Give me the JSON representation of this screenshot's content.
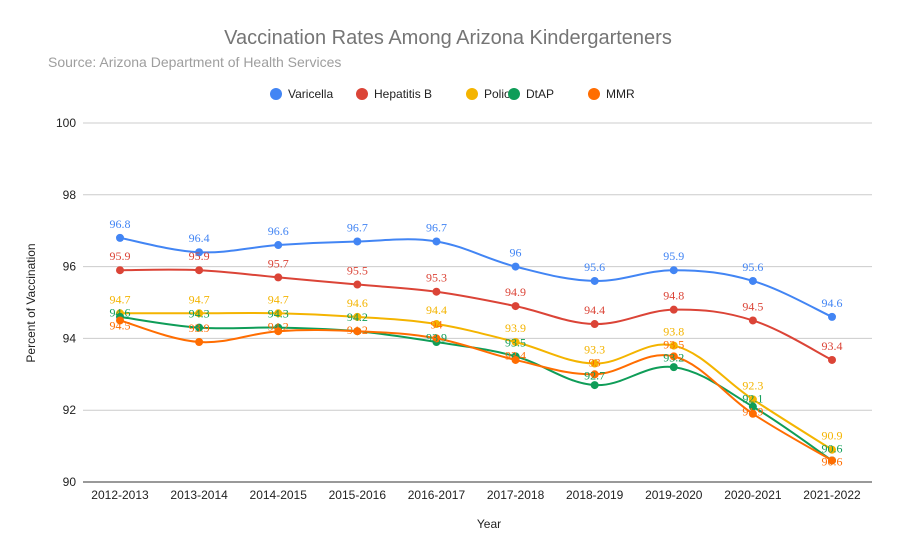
{
  "chart_data": {
    "type": "line",
    "title": "Vaccination Rates Among Arizona Kindergarteners",
    "subtitle": "Source: Arizona Department of Health Services",
    "xlabel": "Year",
    "ylabel": "Percent of Vaccination",
    "ylim": [
      90,
      100
    ],
    "yticks": [
      "90",
      "92",
      "94",
      "96",
      "98",
      "100"
    ],
    "grid": true,
    "legend_position": "top",
    "smooth": true,
    "categories": [
      "2012-2013",
      "2013-2014",
      "2014-2015",
      "2015-2016",
      "2016-2017",
      "2017-2018",
      "2018-2019",
      "2019-2020",
      "2020-2021",
      "2021-2022"
    ],
    "series": [
      {
        "name": "Varicella",
        "color": "#4285f4",
        "values": [
          96.8,
          96.4,
          96.6,
          96.7,
          96.7,
          96,
          95.6,
          95.9,
          95.6,
          94.6
        ]
      },
      {
        "name": "Hepatitis B",
        "color": "#db4437",
        "values": [
          95.9,
          95.9,
          95.7,
          95.5,
          95.3,
          94.9,
          94.4,
          94.8,
          94.5,
          93.4
        ]
      },
      {
        "name": "Polio",
        "color": "#f4b400",
        "values": [
          94.7,
          94.7,
          94.7,
          94.6,
          94.4,
          93.9,
          93.3,
          93.8,
          92.3,
          90.9
        ]
      },
      {
        "name": "DtAP",
        "color": "#0f9d58",
        "values": [
          94.6,
          94.3,
          94.3,
          94.2,
          93.9,
          93.5,
          92.7,
          93.2,
          92.1,
          90.6
        ]
      },
      {
        "name": "MMR",
        "color": "#ff6d01",
        "values": [
          94.5,
          93.9,
          94.2,
          94.2,
          94,
          93.4,
          93,
          93.5,
          91.9,
          90.6
        ]
      }
    ]
  }
}
